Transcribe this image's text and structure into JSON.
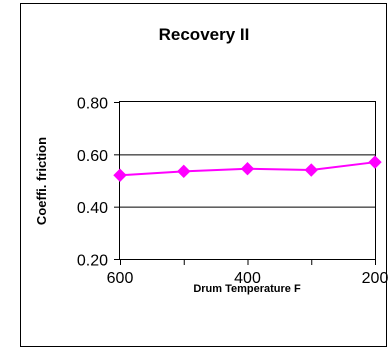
{
  "chart_data": {
    "type": "line",
    "title": "Recovery II",
    "xlabel": "Drum Temperature F",
    "ylabel": "Coeffi. friction",
    "x": [
      600,
      500,
      400,
      300,
      200
    ],
    "x_tick_labels": [
      "600",
      "400",
      "200"
    ],
    "x_ticks": [
      600,
      400,
      200
    ],
    "series": [
      {
        "values": [
          0.52,
          0.535,
          0.545,
          0.54,
          0.57
        ],
        "color": "#ff00ff",
        "marker": "diamond"
      }
    ],
    "ylim": [
      0.2,
      0.8
    ],
    "y_ticks": [
      0.2,
      0.4,
      0.6,
      0.8
    ],
    "y_tick_labels": [
      "0.20",
      "0.40",
      "0.60",
      "0.80"
    ],
    "x_reversed": true,
    "grid": "horizontal",
    "legend": "none"
  }
}
